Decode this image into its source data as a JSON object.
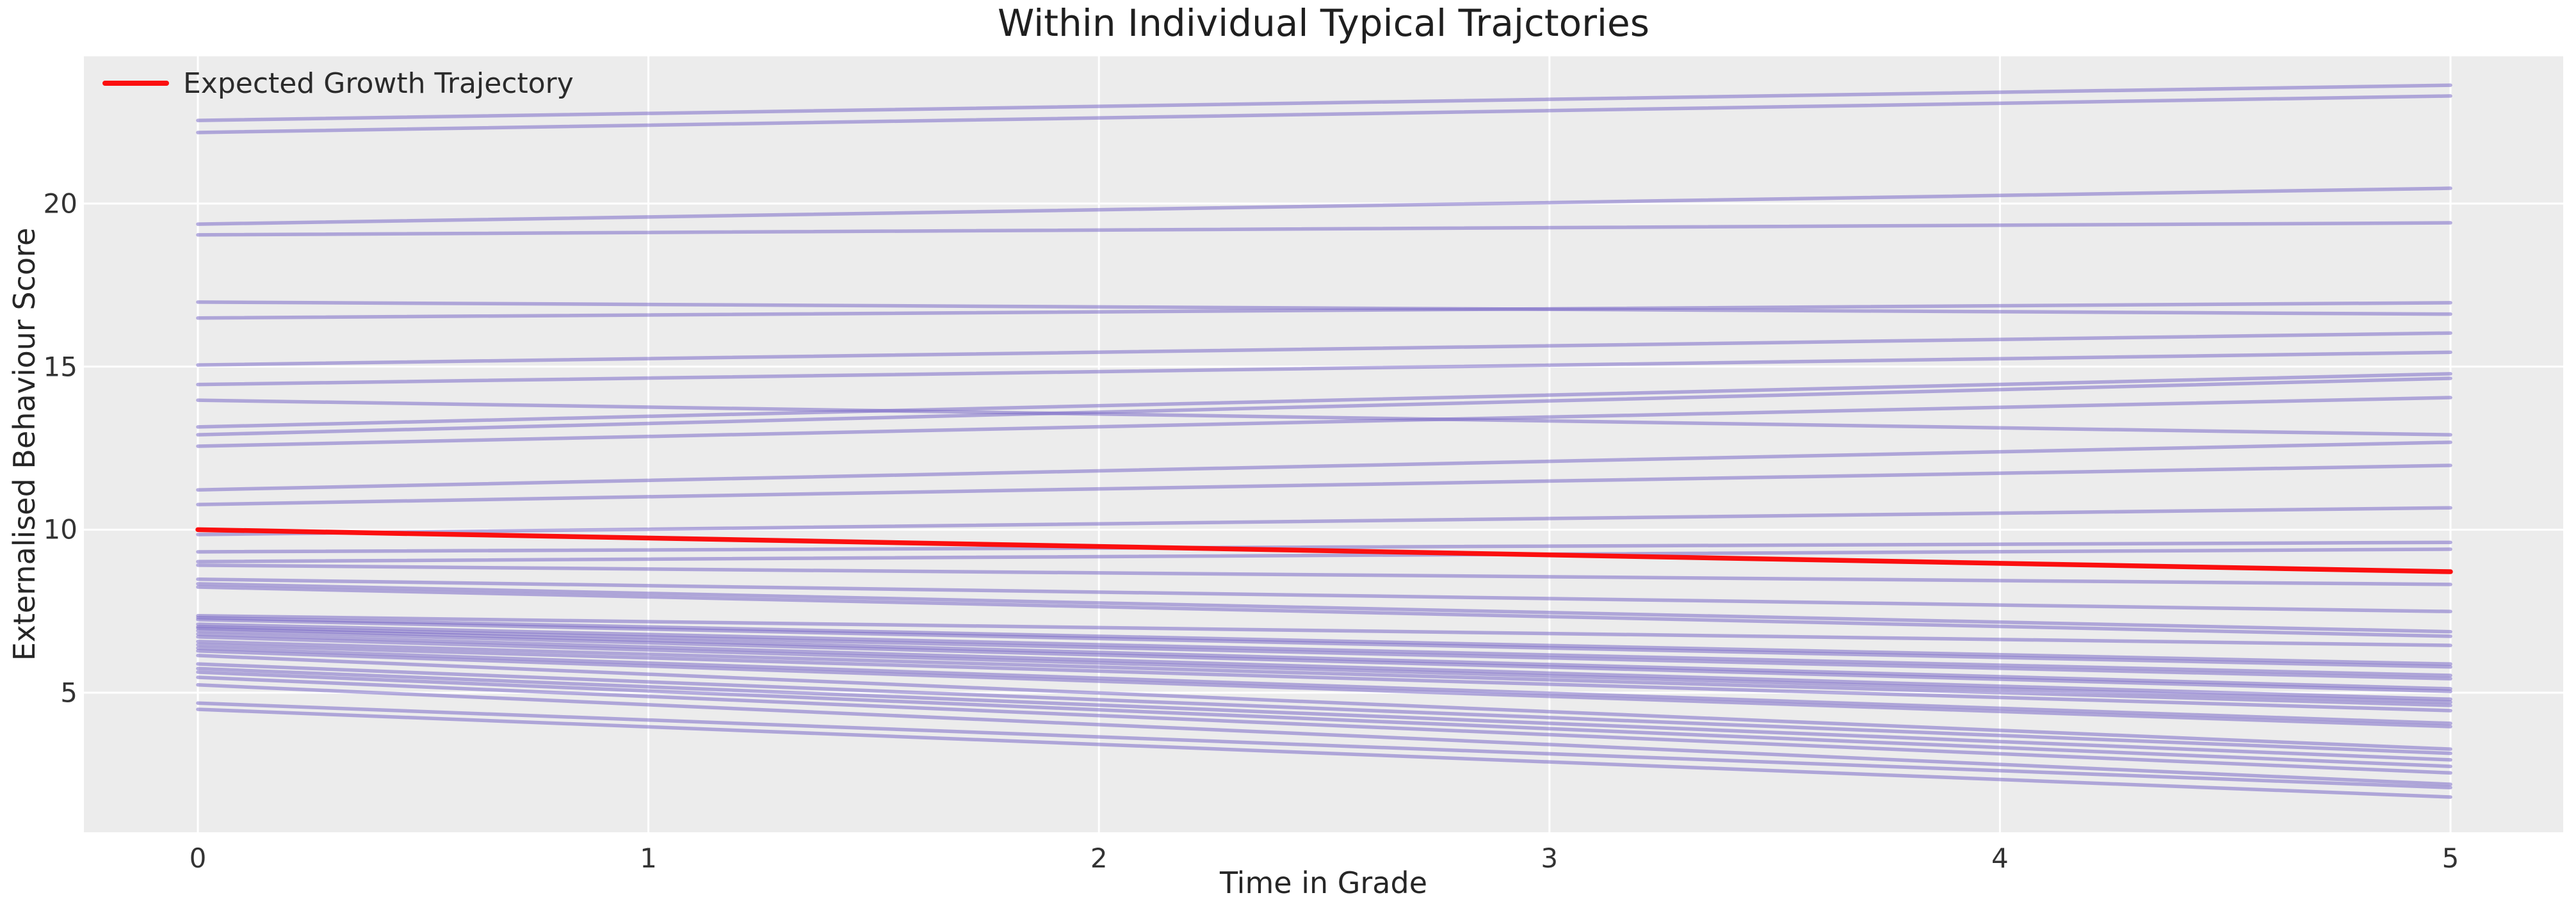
{
  "title": "Within Individual Typical Trajctories",
  "legend": {
    "label": "Expected Growth Trajectory",
    "line_color": "#fb0f0f"
  },
  "axes": {
    "xlabel": "Time in Grade",
    "ylabel": "Externalised Behaviour Score",
    "background": "#ececec",
    "grid_color": "#ffffff",
    "tick_color": "#333333"
  },
  "chart_data": {
    "type": "line",
    "title": "Within Individual Typical Trajctories",
    "xlabel": "Time in Grade",
    "ylabel": "Externalised Behaviour Score",
    "x": [
      0,
      5
    ],
    "xticks": [
      0,
      1,
      2,
      3,
      4,
      5
    ],
    "yticks": [
      5,
      10,
      15,
      20
    ],
    "xlim": [
      -0.25,
      5.25
    ],
    "ylim": [
      0.72,
      24.52
    ],
    "grid": true,
    "legend_position": "upper left",
    "expected_series": {
      "name": "Expected Growth Trajectory",
      "color": "#fb0f0f",
      "values": [
        10.0,
        8.71
      ]
    },
    "individual_series": {
      "name": "individual-trajectories",
      "color": "#7c6bc9",
      "opacity": 0.55,
      "lines": [
        [
          22.55,
          23.63
        ],
        [
          22.18,
          23.3
        ],
        [
          19.37,
          20.47
        ],
        [
          19.04,
          19.41
        ],
        [
          16.98,
          16.61
        ],
        [
          16.49,
          16.96
        ],
        [
          15.05,
          16.03
        ],
        [
          14.45,
          15.44
        ],
        [
          13.97,
          12.91
        ],
        [
          13.15,
          14.78
        ],
        [
          12.91,
          14.64
        ],
        [
          12.56,
          14.05
        ],
        [
          11.22,
          12.68
        ],
        [
          10.77,
          11.97
        ],
        [
          9.85,
          10.67
        ],
        [
          9.32,
          9.61
        ],
        [
          9.02,
          9.4
        ],
        [
          8.91,
          8.32
        ],
        [
          8.48,
          7.49
        ],
        [
          8.34,
          6.87
        ],
        [
          8.24,
          6.73
        ],
        [
          7.36,
          6.45
        ],
        [
          7.3,
          5.88
        ],
        [
          7.24,
          5.79
        ],
        [
          7.1,
          5.53
        ],
        [
          7.02,
          5.43
        ],
        [
          6.98,
          5.12
        ],
        [
          6.9,
          5.04
        ],
        [
          6.8,
          4.8
        ],
        [
          6.71,
          4.71
        ],
        [
          6.57,
          4.61
        ],
        [
          6.47,
          4.45
        ],
        [
          6.37,
          4.06
        ],
        [
          6.28,
          3.96
        ],
        [
          6.14,
          3.27
        ],
        [
          5.88,
          3.14
        ],
        [
          5.74,
          2.94
        ],
        [
          5.63,
          2.74
        ],
        [
          5.47,
          2.54
        ],
        [
          5.24,
          2.19
        ],
        [
          4.68,
          2.09
        ],
        [
          4.49,
          1.8
        ]
      ]
    }
  }
}
